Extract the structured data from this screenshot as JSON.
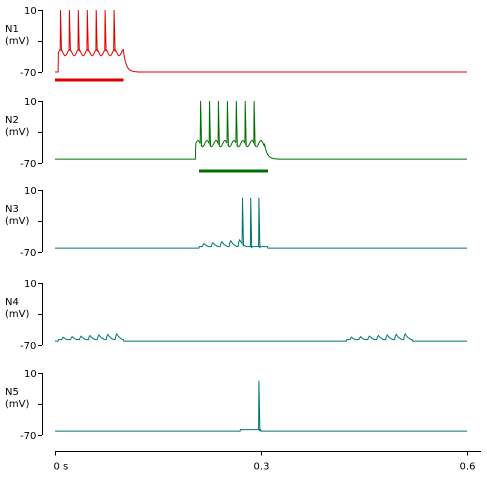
{
  "chart_data": {
    "type": "line",
    "time_unit": "s",
    "x_range": [
      0,
      0.6
    ],
    "x_ticks": [
      {
        "value": 0,
        "label": "0 s"
      },
      {
        "value": 0.3,
        "label": "0.3"
      },
      {
        "value": 0.6,
        "label": "0.6"
      }
    ],
    "y_range_mV": [
      -70,
      10
    ],
    "panels": [
      {
        "name": "N1",
        "unit": "(mV)",
        "y_top_label": "10",
        "y_bottom_label": "-70",
        "color": "#e00000",
        "stimulus": [
          0,
          0.1
        ],
        "bursts": [
          {
            "start": 0.005,
            "end": 0.1,
            "spikes": [
              0.008,
              0.021,
              0.034,
              0.047,
              0.06,
              0.073,
              0.086
            ],
            "spike_peak": 10,
            "plateau": -45
          }
        ],
        "rest": -70
      },
      {
        "name": "N2",
        "unit": "(mV)",
        "y_top_label": "10",
        "y_bottom_label": "-70",
        "color": "#007000",
        "stimulus": [
          0.21,
          0.31
        ],
        "bursts": [
          {
            "start": 0.205,
            "end": 0.305,
            "spikes": [
              0.212,
              0.225,
              0.238,
              0.251,
              0.264,
              0.277,
              0.29
            ],
            "spike_peak": 10,
            "plateau": -45
          }
        ],
        "rest": -65
      },
      {
        "name": "N3",
        "unit": "(mV)",
        "y_top_label": "10",
        "y_bottom_label": "-70",
        "color": "#007575",
        "stimulus": null,
        "bursts": [
          {
            "start": 0.21,
            "end": 0.31,
            "spikes": [
              0.273,
              0.285,
              0.297
            ],
            "spike_peak": 0,
            "subthreshold_bumps": [
              0.215,
              0.228,
              0.241,
              0.254,
              0.267
            ],
            "bump_peak": -50
          }
        ],
        "rest": -65
      },
      {
        "name": "N4",
        "unit": "(mV)",
        "y_top_label": "10",
        "y_bottom_label": "-70",
        "color": "#007575",
        "stimulus": null,
        "bursts": [
          {
            "start": 0.005,
            "end": 0.1,
            "spikes": [],
            "subthreshold_bumps": [
              0.01,
              0.023,
              0.036,
              0.049,
              0.062,
              0.075,
              0.088
            ],
            "bump_peak": -52
          },
          {
            "start": 0.425,
            "end": 0.52,
            "spikes": [],
            "subthreshold_bumps": [
              0.43,
              0.443,
              0.456,
              0.469,
              0.482,
              0.495,
              0.508
            ],
            "bump_peak": -52
          }
        ],
        "rest": -65
      },
      {
        "name": "N5",
        "unit": "(mV)",
        "y_top_label": "10",
        "y_bottom_label": "-70",
        "color": "#007575",
        "stimulus": null,
        "bursts": [
          {
            "start": 0.27,
            "end": 0.3,
            "spikes": [
              0.297
            ],
            "spike_peak": 0,
            "subthreshold_bumps": [
              0.273,
              0.285
            ],
            "bump_peak": -62
          }
        ],
        "rest": -65
      }
    ]
  }
}
